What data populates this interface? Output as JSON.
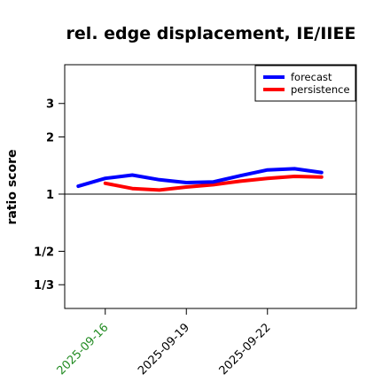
{
  "chart_data": {
    "type": "line",
    "title": "rel. edge displacement, IE/IIEE",
    "xlabel": "",
    "ylabel": "ratio score",
    "y_scale": "log",
    "ylim": [
      0.25,
      4.8
    ],
    "y_ticks": [
      {
        "value": 0.3333,
        "label": "1/3"
      },
      {
        "value": 0.5,
        "label": "1/2"
      },
      {
        "value": 1,
        "label": "1"
      },
      {
        "value": 2,
        "label": "2"
      },
      {
        "value": 3,
        "label": "3"
      }
    ],
    "reference_line": 1,
    "x_ticks": [
      {
        "value": "2025-09-16",
        "label": "2025-09-16",
        "color": "#228b22"
      },
      {
        "value": "2025-09-19",
        "label": "2025-09-19",
        "color": "#000000"
      },
      {
        "value": "2025-09-22",
        "label": "2025-09-22",
        "color": "#000000"
      }
    ],
    "x": [
      "2025-09-15",
      "2025-09-16",
      "2025-09-17",
      "2025-09-18",
      "2025-09-19",
      "2025-09-20",
      "2025-09-21",
      "2025-09-22",
      "2025-09-23",
      "2025-09-24"
    ],
    "series": [
      {
        "name": "forecast",
        "color": "#0000ff",
        "values": [
          1.1,
          1.21,
          1.26,
          1.19,
          1.15,
          1.16,
          1.25,
          1.34,
          1.36,
          1.3
        ]
      },
      {
        "name": "persistence",
        "color": "#ff0000",
        "values": [
          null,
          1.14,
          1.07,
          1.05,
          1.09,
          1.12,
          1.17,
          1.21,
          1.24,
          1.23
        ]
      }
    ],
    "legend_position": "top-right",
    "grid": false
  }
}
